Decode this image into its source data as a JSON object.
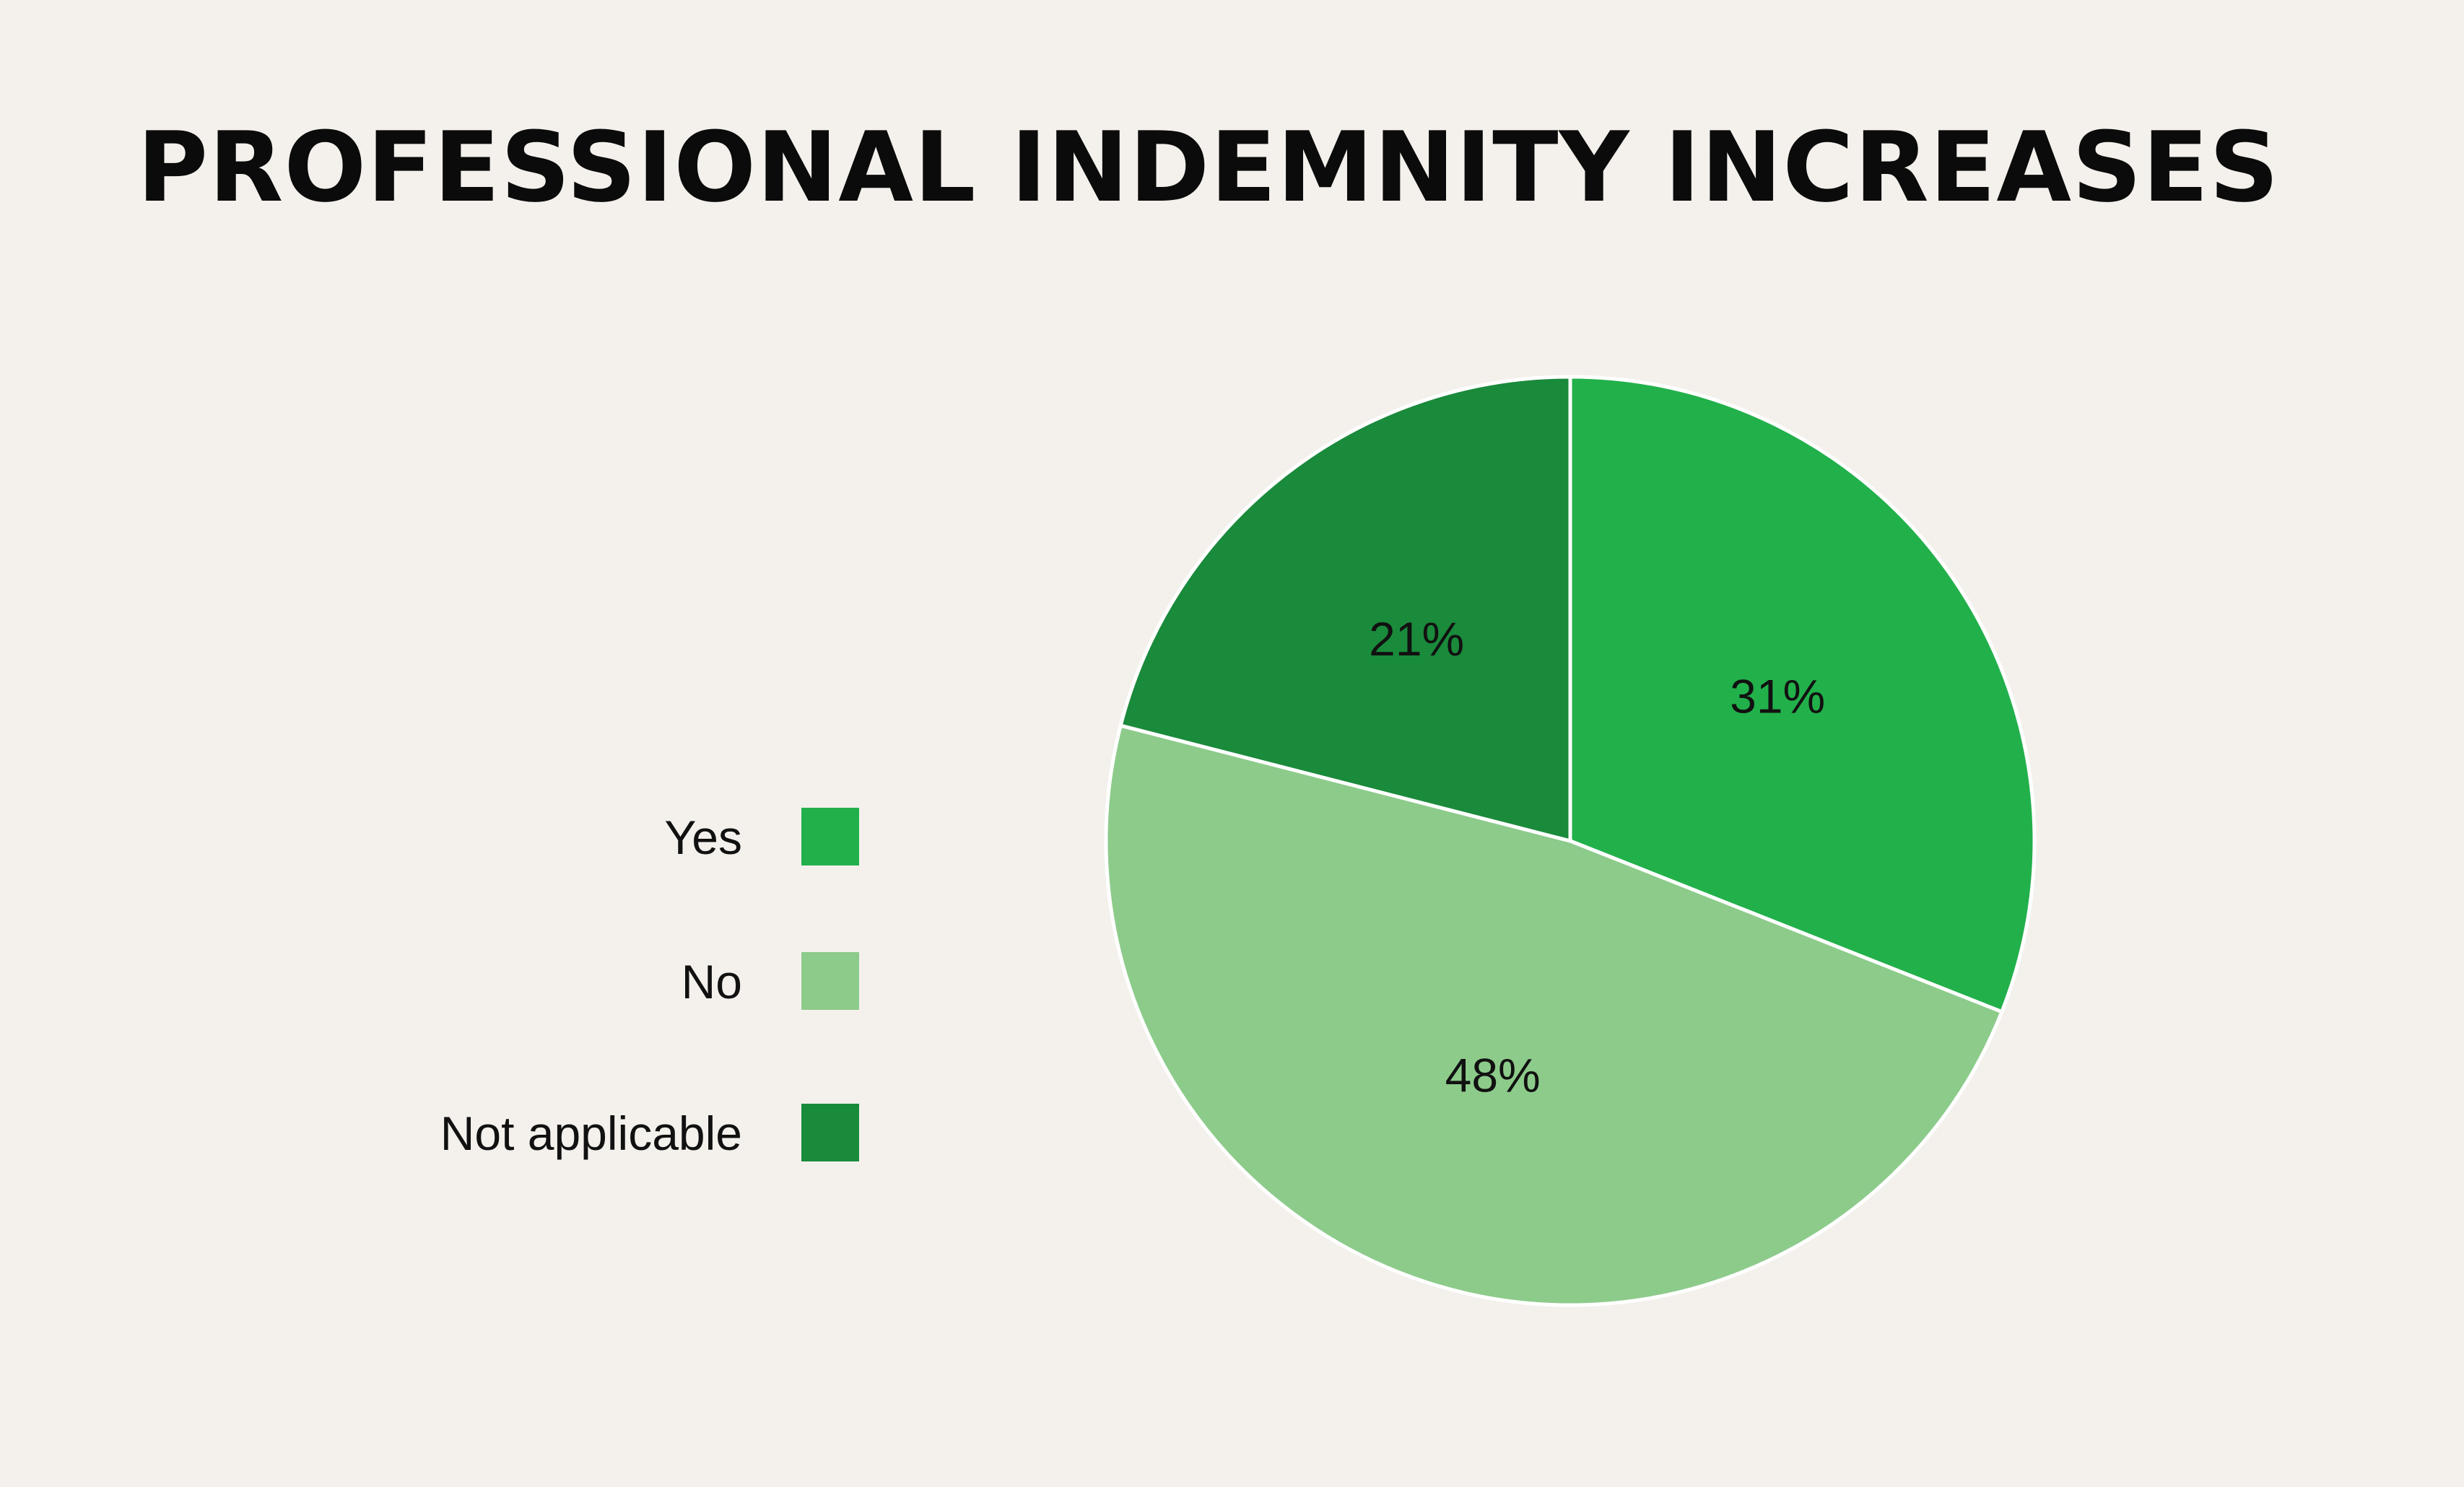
{
  "colors": {
    "background": "#f4f1ec",
    "yes": "#22b04b",
    "no": "#8dcb8b",
    "not_applicable": "#1a8a3b",
    "slice_border": "#ffffff"
  },
  "chart_data": {
    "type": "pie",
    "title": "PROFESSIONAL INDEMNITY INCREASES",
    "legend_position": "left",
    "slices": [
      {
        "label": "Yes",
        "value": 31,
        "display": "31%",
        "color": "#22b04b"
      },
      {
        "label": "No",
        "value": 48,
        "display": "48%",
        "color": "#8dcb8b"
      },
      {
        "label": "Not applicable",
        "value": 21,
        "display": "21%",
        "color": "#1a8a3b"
      }
    ]
  }
}
